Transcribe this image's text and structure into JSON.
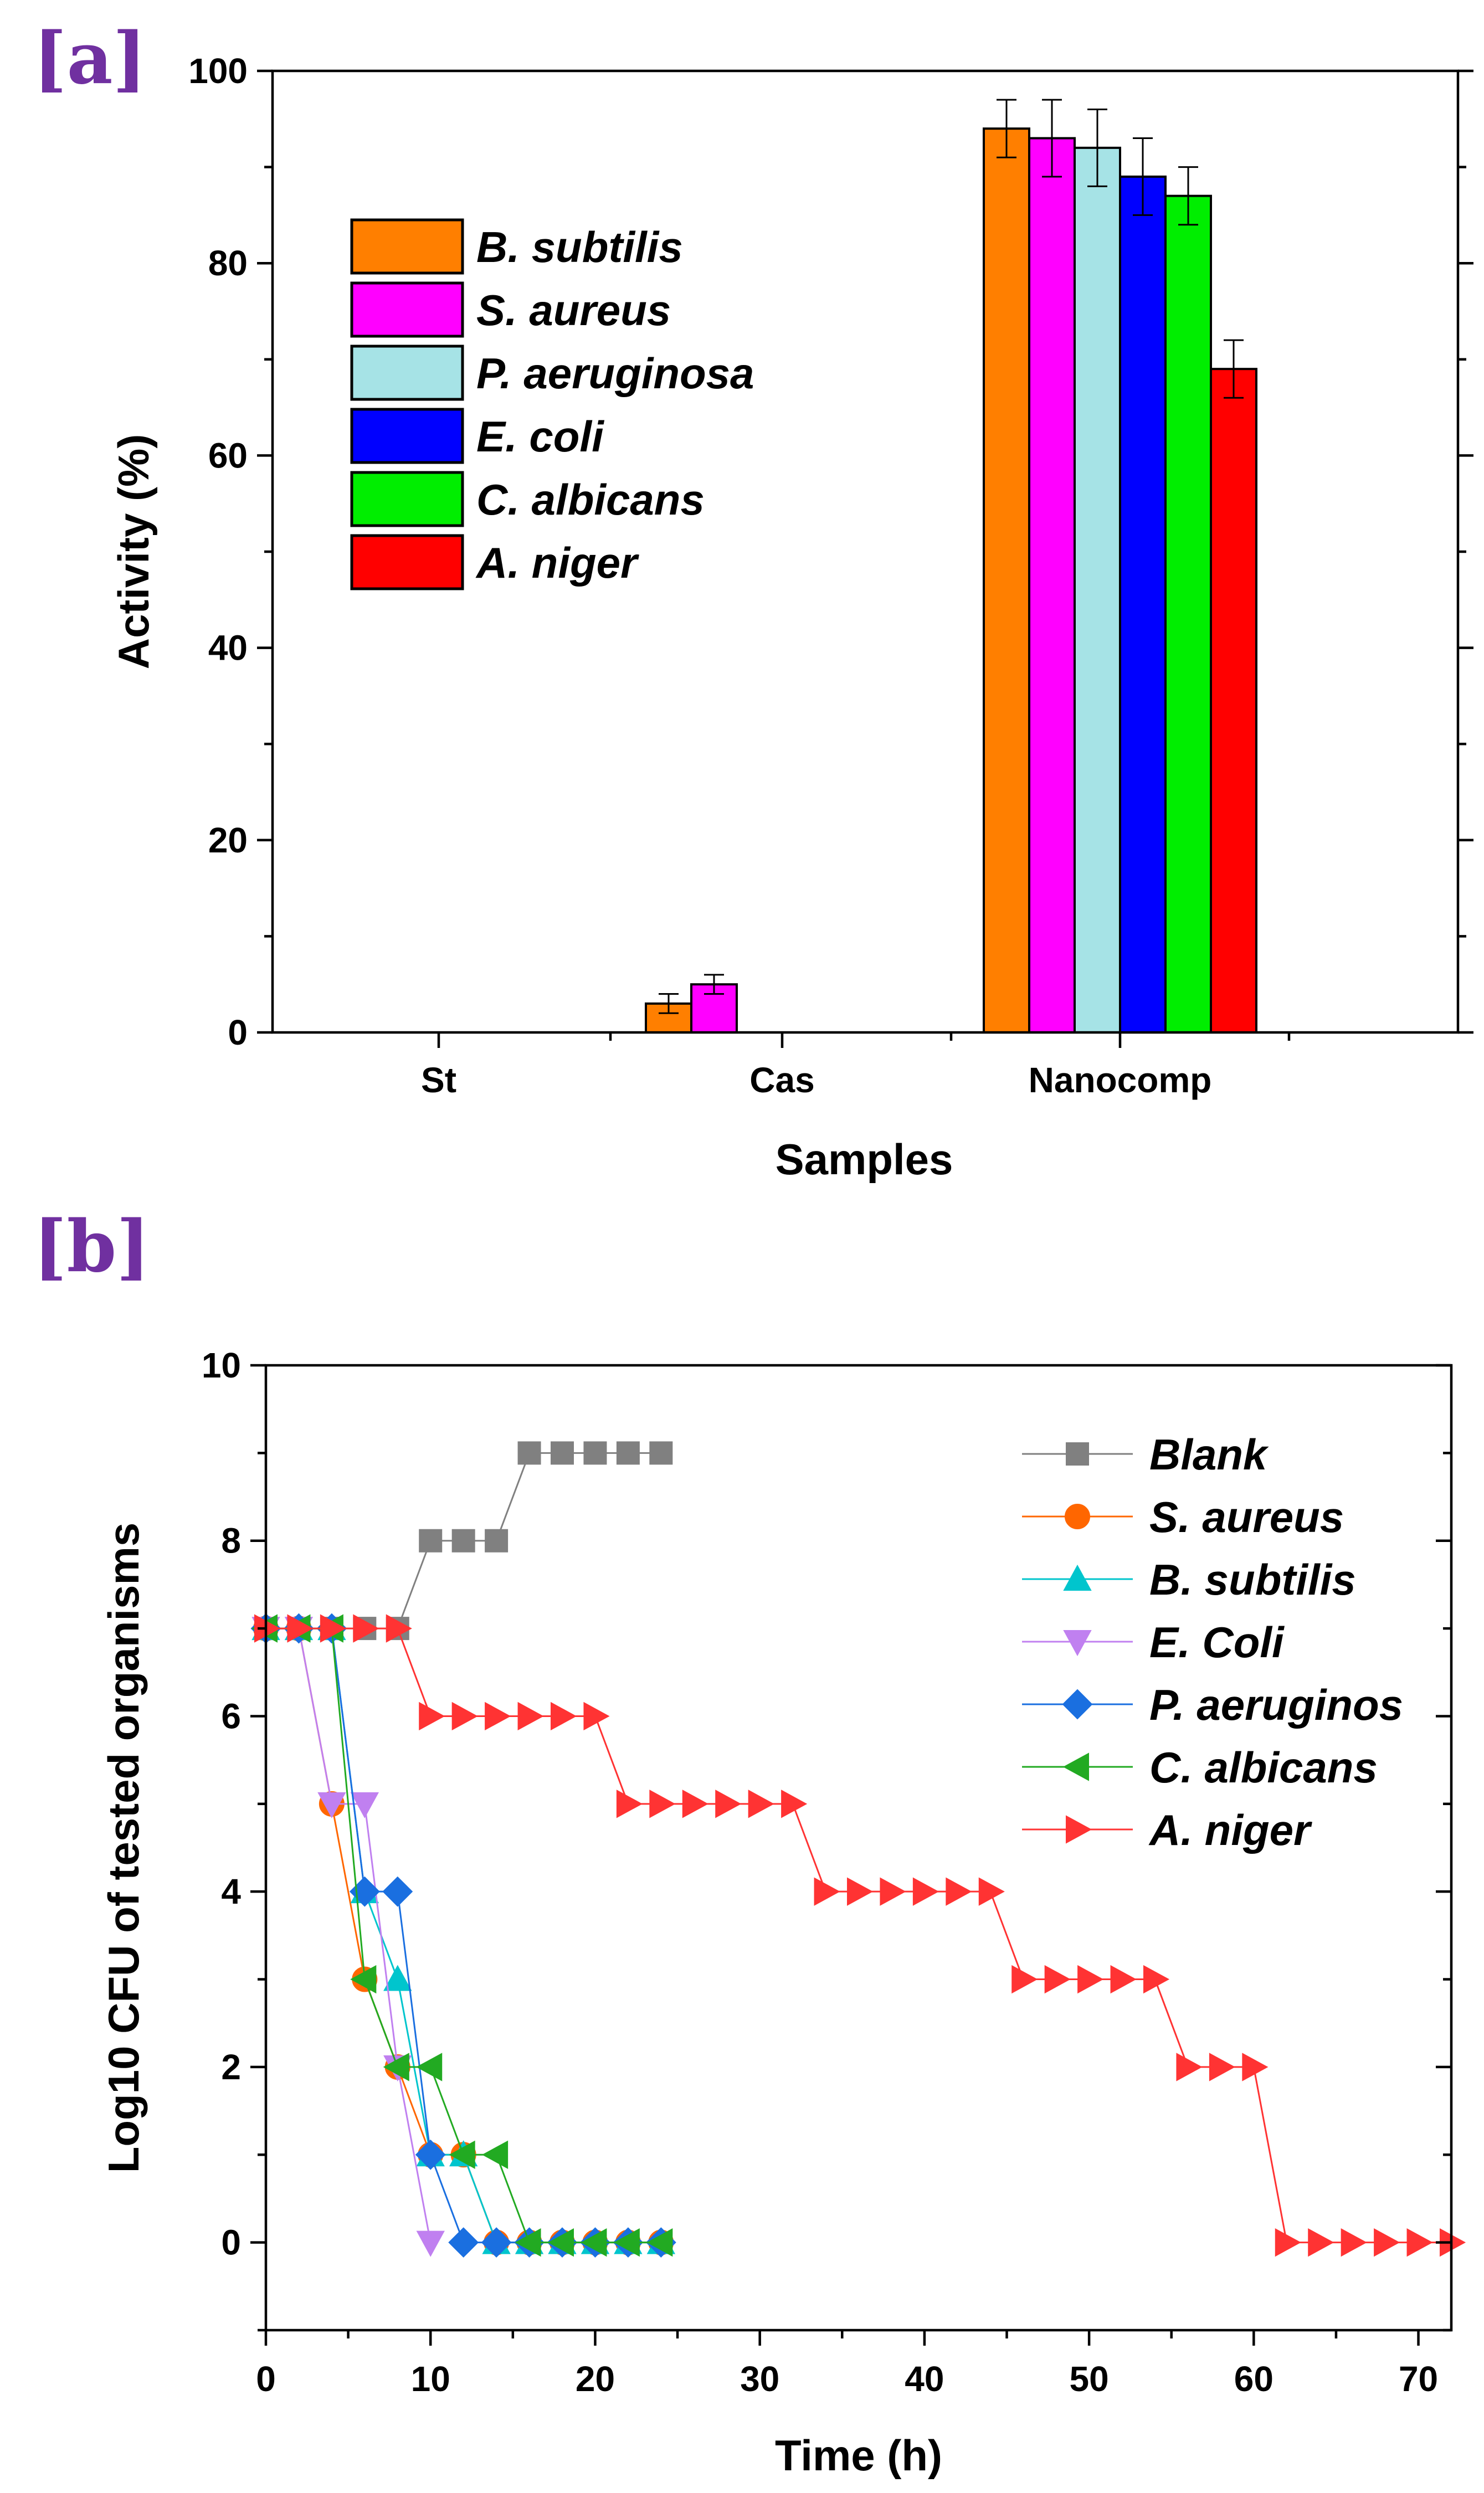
{
  "chart_data": [
    {
      "panel_label": "[a]",
      "type": "bar",
      "title": "",
      "xlabel": "Samples",
      "ylabel": "Activity (%)",
      "ylim": [
        0,
        100
      ],
      "yticks": [
        0,
        20,
        40,
        60,
        80,
        100
      ],
      "categories": [
        "St",
        "Cas",
        "Nanocomp"
      ],
      "legend_position": "upper-left",
      "series": [
        {
          "name": "B. subtilis",
          "color": "#ff7f00",
          "values": [
            0,
            3,
            94
          ],
          "errors": [
            0,
            1,
            3
          ]
        },
        {
          "name": "S. aureus",
          "color": "#ff00ff",
          "values": [
            0,
            5,
            93
          ],
          "errors": [
            0,
            1,
            4
          ]
        },
        {
          "name": "P. aeruginosa",
          "color": "#a6e3e6",
          "values": [
            0,
            0,
            92
          ],
          "errors": [
            0,
            0,
            4
          ]
        },
        {
          "name": "E. coli",
          "color": "#0000ff",
          "values": [
            0,
            0,
            89
          ],
          "errors": [
            0,
            0,
            4
          ]
        },
        {
          "name": "C. albicans",
          "color": "#00ee00",
          "values": [
            0,
            0,
            87
          ],
          "errors": [
            0,
            0,
            3
          ]
        },
        {
          "name": "A. niger",
          "color": "#ff0000",
          "values": [
            0,
            0,
            69
          ],
          "errors": [
            0,
            0,
            3
          ]
        }
      ]
    },
    {
      "panel_label": "[b]",
      "type": "line",
      "title": "",
      "xlabel": "Time (h)",
      "ylabel": "Log10 CFU of tested organisms",
      "xlim": [
        0,
        72
      ],
      "ylim": [
        -1,
        10
      ],
      "xticks": [
        0,
        10,
        20,
        30,
        40,
        50,
        60,
        70
      ],
      "yticks": [
        0,
        2,
        4,
        6,
        8,
        10
      ],
      "legend_position": "top-right",
      "series": [
        {
          "name": "Blank",
          "color": "#808080",
          "marker": "square",
          "x": [
            0,
            2,
            4,
            6,
            8,
            10,
            12,
            14,
            16,
            18,
            20,
            22,
            24
          ],
          "y": [
            7,
            7,
            7,
            7,
            7,
            8,
            8,
            8,
            9,
            9,
            9,
            9,
            9
          ]
        },
        {
          "name": "S. aureus",
          "color": "#ff6600",
          "marker": "circle",
          "x": [
            0,
            2,
            4,
            6,
            8,
            10,
            12,
            14,
            16,
            18,
            20,
            22,
            24
          ],
          "y": [
            7,
            7,
            5,
            3,
            2,
            1,
            1,
            0,
            0,
            0,
            0,
            0,
            0
          ]
        },
        {
          "name": "B. subtilis",
          "color": "#00c5cd",
          "marker": "triangle-up",
          "x": [
            0,
            2,
            4,
            6,
            8,
            10,
            12,
            14,
            16,
            18,
            20,
            22,
            24
          ],
          "y": [
            7,
            7,
            7,
            4,
            3,
            1,
            1,
            0,
            0,
            0,
            0,
            0,
            0
          ]
        },
        {
          "name": "E. Coli",
          "color": "#c080f0",
          "marker": "triangle-down",
          "x": [
            0,
            2,
            4,
            6,
            8,
            10
          ],
          "y": [
            7,
            7,
            5,
            5,
            2,
            0
          ]
        },
        {
          "name": "P. aeruginos",
          "color": "#1a6fe0",
          "marker": "diamond",
          "x": [
            0,
            2,
            4,
            6,
            8,
            10,
            12,
            14,
            16,
            18,
            20,
            22,
            24
          ],
          "y": [
            7,
            7,
            7,
            4,
            4,
            1,
            0,
            0,
            0,
            0,
            0,
            0,
            0
          ]
        },
        {
          "name": "C. albicans",
          "color": "#22aa22",
          "marker": "triangle-left",
          "x": [
            0,
            2,
            4,
            6,
            8,
            10,
            12,
            14,
            16,
            18,
            20,
            22,
            24
          ],
          "y": [
            7,
            7,
            7,
            3,
            2,
            2,
            1,
            1,
            0,
            0,
            0,
            0,
            0
          ]
        },
        {
          "name": "A. niger",
          "color": "#ff3333",
          "marker": "triangle-right",
          "x": [
            0,
            2,
            4,
            6,
            8,
            10,
            12,
            14,
            16,
            18,
            20,
            22,
            24,
            26,
            28,
            30,
            32,
            34,
            36,
            38,
            40,
            42,
            44,
            46,
            48,
            50,
            52,
            54,
            56,
            58,
            60,
            62,
            64,
            66,
            68,
            70,
            72
          ],
          "y": [
            7,
            7,
            7,
            7,
            7,
            6,
            6,
            6,
            6,
            6,
            6,
            5,
            5,
            5,
            5,
            5,
            5,
            4,
            4,
            4,
            4,
            4,
            4,
            3,
            3,
            3,
            3,
            3,
            2,
            2,
            2,
            0,
            0,
            0,
            0,
            0,
            0
          ]
        }
      ]
    }
  ]
}
